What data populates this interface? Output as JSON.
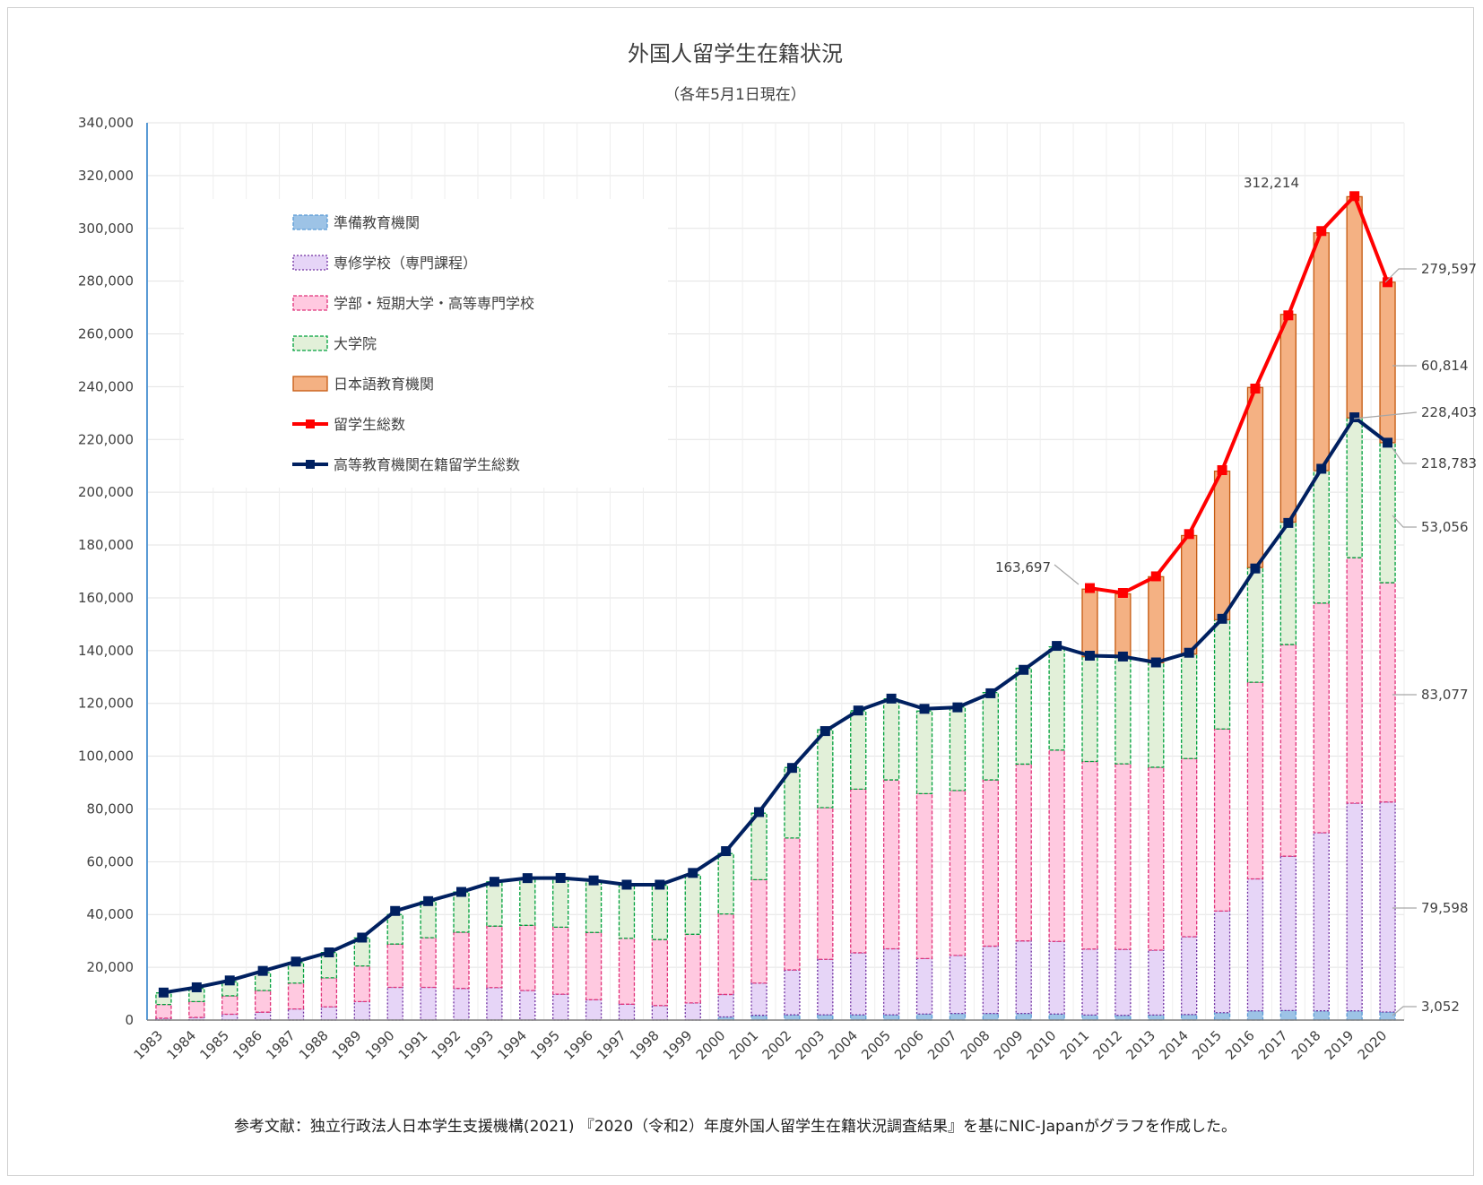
{
  "chart_data": {
    "type": "bar",
    "title": "外国人留学生在籍状況",
    "subtitle": "（各年5月1日現在）",
    "source_note": "参考文献：独立行政法人日本学生支援機構(2021) 『2020（令和2）年度外国人留学生在籍状況調査結果』を基にNIC-Japanがグラフを作成した。",
    "xlabel": "",
    "ylabel": "",
    "ylim": [
      0,
      340000
    ],
    "y_ticks": [
      "0",
      "20,000",
      "40,000",
      "60,000",
      "80,000",
      "100,000",
      "120,000",
      "140,000",
      "160,000",
      "180,000",
      "200,000",
      "220,000",
      "240,000",
      "260,000",
      "280,000",
      "300,000",
      "320,000",
      "340,000"
    ],
    "y_tick_values": [
      0,
      20000,
      40000,
      60000,
      80000,
      100000,
      120000,
      140000,
      160000,
      180000,
      200000,
      220000,
      240000,
      260000,
      280000,
      300000,
      320000,
      340000
    ],
    "grid": true,
    "legend_position": "top-left",
    "categories": [
      "1983",
      "1984",
      "1985",
      "1986",
      "1987",
      "1988",
      "1989",
      "1990",
      "1991",
      "1992",
      "1993",
      "1994",
      "1995",
      "1996",
      "1997",
      "1998",
      "1999",
      "2000",
      "2001",
      "2002",
      "2003",
      "2004",
      "2005",
      "2006",
      "2007",
      "2008",
      "2009",
      "2010",
      "2011",
      "2012",
      "2013",
      "2014",
      "2015",
      "2016",
      "2017",
      "2018",
      "2019",
      "2020"
    ],
    "series": [
      {
        "name": "準備教育機関",
        "kind": "bar",
        "color": "#9dc3e6",
        "stroke": "#5b9bd5",
        "values": [
          0,
          0,
          0,
          0,
          0,
          0,
          0,
          0,
          0,
          0,
          0,
          0,
          0,
          0,
          0,
          0,
          0,
          1200,
          1800,
          2000,
          2000,
          2000,
          2000,
          2300,
          2500,
          2500,
          2500,
          2300,
          1900,
          1800,
          1900,
          2100,
          2800,
          3500,
          3600,
          3500,
          3500,
          3052
        ]
      },
      {
        "name": "専修学校（専門課程）",
        "kind": "bar",
        "color": "#e6d5f7",
        "stroke": "#7030a0",
        "values": [
          700,
          1000,
          2200,
          3000,
          4200,
          5000,
          7000,
          12400,
          12400,
          12000,
          12300,
          11200,
          9800,
          7700,
          6000,
          5500,
          6500,
          8500,
          12200,
          17000,
          21000,
          23500,
          25000,
          21000,
          22000,
          25500,
          27500,
          27500,
          25000,
          25000,
          24600,
          29500,
          38500,
          50000,
          58500,
          67500,
          78700,
          79598
        ]
      },
      {
        "name": "学部・短期大学・高等専門学校",
        "kind": "bar",
        "color": "#ffc9e0",
        "stroke": "#e0337a",
        "values": [
          5200,
          6000,
          7000,
          8200,
          9800,
          11000,
          13500,
          16400,
          18800,
          21300,
          23300,
          24700,
          25400,
          25500,
          25000,
          25000,
          26000,
          30500,
          39200,
          50000,
          57500,
          62000,
          64000,
          62500,
          62500,
          63000,
          67000,
          72500,
          71100,
          70300,
          69300,
          67500,
          69000,
          74500,
          80200,
          87000,
          93000,
          83077
        ]
      },
      {
        "name": "大学院",
        "kind": "bar",
        "color": "#e2f0d9",
        "stroke": "#00a03c",
        "values": [
          4400,
          5000,
          5300,
          6800,
          7800,
          9600,
          10600,
          11200,
          13800,
          15200,
          16800,
          17900,
          18800,
          19800,
          20200,
          20600,
          22500,
          22900,
          25200,
          26700,
          29500,
          29700,
          30700,
          31300,
          31600,
          33100,
          36300,
          39100,
          39700,
          40300,
          39600,
          39600,
          41400,
          43500,
          46400,
          50200,
          53000,
          53056
        ]
      },
      {
        "name": "日本語教育機関",
        "kind": "bar",
        "color": "#f4b183",
        "stroke": "#c55a11",
        "values": [
          0,
          0,
          0,
          0,
          0,
          0,
          0,
          0,
          0,
          0,
          0,
          0,
          0,
          0,
          0,
          0,
          0,
          0,
          0,
          0,
          0,
          0,
          0,
          0,
          0,
          0,
          0,
          0,
          25600,
          24100,
          32600,
          44900,
          56300,
          68200,
          78700,
          90100,
          83800,
          60814
        ]
      },
      {
        "name": "留学生総数",
        "kind": "line",
        "color": "#ff0000",
        "x": [
          "2011",
          "2012",
          "2013",
          "2014",
          "2015",
          "2016",
          "2017",
          "2018",
          "2019",
          "2020"
        ],
        "values": [
          163697,
          161848,
          168145,
          184155,
          208379,
          239287,
          267042,
          298980,
          312214,
          279597
        ]
      },
      {
        "name": "高等教育機関在籍留学生総数",
        "kind": "line",
        "color": "#002060",
        "values": [
          10428,
          12410,
          15009,
          18631,
          22154,
          25643,
          31251,
          41347,
          45066,
          48561,
          52405,
          53787,
          53847,
          52921,
          51298,
          51298,
          55755,
          64011,
          78812,
          95550,
          109508,
          117302,
          121812,
          117927,
          118498,
          123829,
          132720,
          141774,
          138075,
          137756,
          135519,
          139185,
          152062,
          171122,
          188384,
          208901,
          228403,
          218783
        ]
      }
    ],
    "annotations": [
      {
        "text": "312,214",
        "target": "2019 留学生総数"
      },
      {
        "text": "163,697",
        "target": "2011 留学生総数"
      },
      {
        "text": "279,597",
        "target": "2020 留学生総数"
      },
      {
        "text": "60,814",
        "target": "2020 日本語教育機関"
      },
      {
        "text": "228,403",
        "target": "2019 高等教育機関在籍留学生総数"
      },
      {
        "text": "218,783",
        "target": "2020 高等教育機関在籍留学生総数"
      },
      {
        "text": "53,056",
        "target": "2020 大学院"
      },
      {
        "text": "83,077",
        "target": "2020 学部・短期大学・高等専門学校"
      },
      {
        "text": "79,598",
        "target": "2020 専修学校（専門課程）"
      },
      {
        "text": "3,052",
        "target": "2020 準備教育機関"
      }
    ]
  }
}
